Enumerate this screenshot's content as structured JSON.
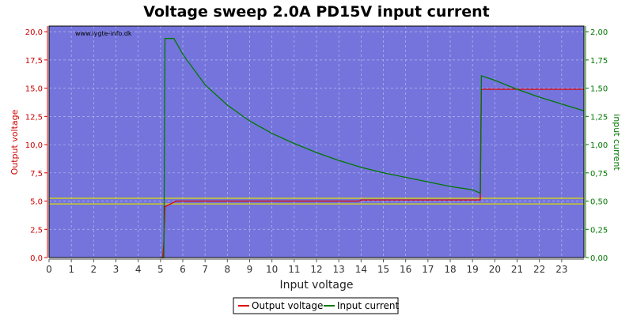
{
  "chart_data": {
    "type": "line",
    "title": "Voltage sweep 2.0A PD15V input current",
    "watermark": "www.lygte-info.dk",
    "xlabel": "Input voltage",
    "ylabel_left": "Output voltage",
    "ylabel_right": "input current",
    "xlim": [
      0,
      24
    ],
    "ylim_left": [
      0,
      20.5
    ],
    "ylim_right": [
      0,
      2.05
    ],
    "x_ticks": [
      "0",
      "1",
      "2",
      "3",
      "4",
      "5",
      "6",
      "7",
      "8",
      "9",
      "10",
      "11",
      "12",
      "13",
      "14",
      "15",
      "16",
      "17",
      "18",
      "19",
      "20",
      "21",
      "22",
      "23"
    ],
    "y_left_ticks": [
      "0,0",
      "2,5",
      "5,0",
      "7,5",
      "10,0",
      "12,5",
      "15,0",
      "17,5",
      "20,0"
    ],
    "y_right_ticks": [
      "0,00",
      "0,25",
      "0,50",
      "0,75",
      "1,00",
      "1,25",
      "1,50",
      "1,75",
      "2,00"
    ],
    "grid": true,
    "legend_position": "bottom-center",
    "reference_lines": [
      {
        "axis": "left",
        "value": 5.25,
        "color": "#dddd00"
      },
      {
        "axis": "left",
        "value": 4.75,
        "color": "#dddd00"
      }
    ],
    "series": [
      {
        "name": "Output voltage",
        "axis": "left",
        "color": "#dd0000",
        "x": [
          5.0,
          5.1,
          5.15,
          5.2,
          5.3,
          5.5,
          5.7,
          6.0,
          8.0,
          10.0,
          12.0,
          13.9,
          14.0,
          16.0,
          18.0,
          19.35,
          19.4,
          21.0,
          23.0,
          24.0
        ],
        "y": [
          0.0,
          0.0,
          1.5,
          4.5,
          4.6,
          4.8,
          5.0,
          5.0,
          5.0,
          5.0,
          5.0,
          5.0,
          5.1,
          5.1,
          5.1,
          5.1,
          14.9,
          14.9,
          14.9,
          14.9
        ]
      },
      {
        "name": "Input current",
        "axis": "right",
        "color": "#007700",
        "x": [
          5.0,
          5.15,
          5.2,
          5.3,
          5.5,
          5.6,
          5.8,
          6.0,
          7.0,
          8.0,
          9.0,
          10.0,
          11.0,
          12.0,
          13.0,
          14.0,
          15.0,
          16.0,
          17.0,
          18.0,
          19.0,
          19.35,
          19.4,
          20.0,
          21.0,
          22.0,
          23.0,
          24.0
        ],
        "y": [
          0.0,
          0.0,
          1.94,
          1.94,
          1.94,
          1.94,
          1.87,
          1.8,
          1.53,
          1.35,
          1.21,
          1.1,
          1.01,
          0.93,
          0.86,
          0.8,
          0.75,
          0.71,
          0.67,
          0.63,
          0.6,
          0.57,
          1.61,
          1.57,
          1.49,
          1.42,
          1.36,
          1.3
        ]
      }
    ]
  }
}
